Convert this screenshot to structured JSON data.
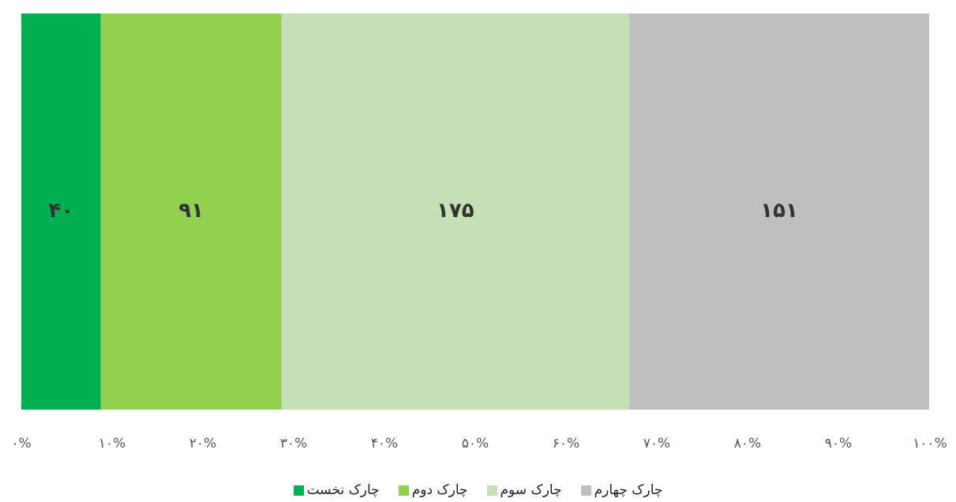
{
  "chart_data": {
    "type": "bar",
    "orientation": "horizontal",
    "stacked": "percent",
    "categories": [
      ""
    ],
    "series": [
      {
        "name": "چارک نخست",
        "values": [
          40
        ],
        "label": "۴۰",
        "color": "#00b050"
      },
      {
        "name": "چارک دوم",
        "values": [
          91
        ],
        "label": "۹۱",
        "color": "#92d050"
      },
      {
        "name": "چارک سوم",
        "values": [
          175
        ],
        "label": "۱۷۵",
        "color": "#c5e0b4"
      },
      {
        "name": "چارک چهارم",
        "values": [
          151
        ],
        "label": "۱۵۱",
        "color": "#bfbfbf"
      }
    ],
    "xlim": [
      0,
      100
    ],
    "x_ticks": [
      "۰%",
      "۱۰%",
      "۲۰%",
      "۳۰%",
      "۴۰%",
      "۵۰%",
      "۶۰%",
      "۷۰%",
      "۸۰%",
      "۹۰%",
      "۱۰۰%"
    ],
    "legend_position": "bottom",
    "grid": false,
    "title": "",
    "xlabel": "",
    "ylabel": ""
  }
}
